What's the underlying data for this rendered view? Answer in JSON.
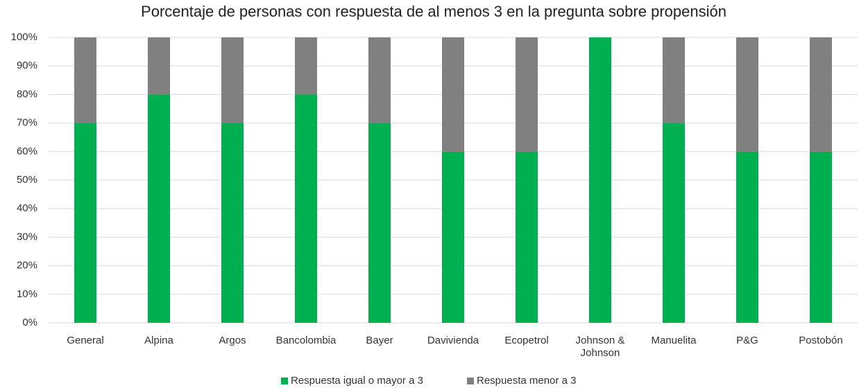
{
  "chart_data": {
    "type": "stacked_bar",
    "title": "Porcentaje de personas con respuesta de al menos 3 en la pregunta sobre propensión",
    "categories": [
      "General",
      "Alpina",
      "Argos",
      "Bancolombia",
      "Bayer",
      "Davivienda",
      "Ecopetrol",
      "Johnson & Johnson",
      "Manuelita",
      "P&G",
      "Postobón"
    ],
    "series": [
      {
        "name": "Respuesta igual o mayor a 3",
        "color": "#00b050",
        "values": [
          70,
          80,
          70,
          80,
          70,
          60,
          60,
          100,
          70,
          60,
          60
        ]
      },
      {
        "name": "Respuesta menor a 3",
        "color": "#808080",
        "values": [
          30,
          20,
          30,
          20,
          30,
          40,
          40,
          0,
          30,
          40,
          40
        ]
      }
    ],
    "ylim": [
      0,
      100
    ],
    "yticks": [
      {
        "value": 0,
        "label": "0%"
      },
      {
        "value": 10,
        "label": "10%"
      },
      {
        "value": 20,
        "label": "20%"
      },
      {
        "value": 30,
        "label": "30%"
      },
      {
        "value": 40,
        "label": "40%"
      },
      {
        "value": 50,
        "label": "50%"
      },
      {
        "value": 60,
        "label": "60%"
      },
      {
        "value": 70,
        "label": "70%"
      },
      {
        "value": 80,
        "label": "80%"
      },
      {
        "value": 90,
        "label": "90%"
      },
      {
        "value": 100,
        "label": "100%"
      }
    ],
    "grid": true,
    "legend": "bottom"
  }
}
